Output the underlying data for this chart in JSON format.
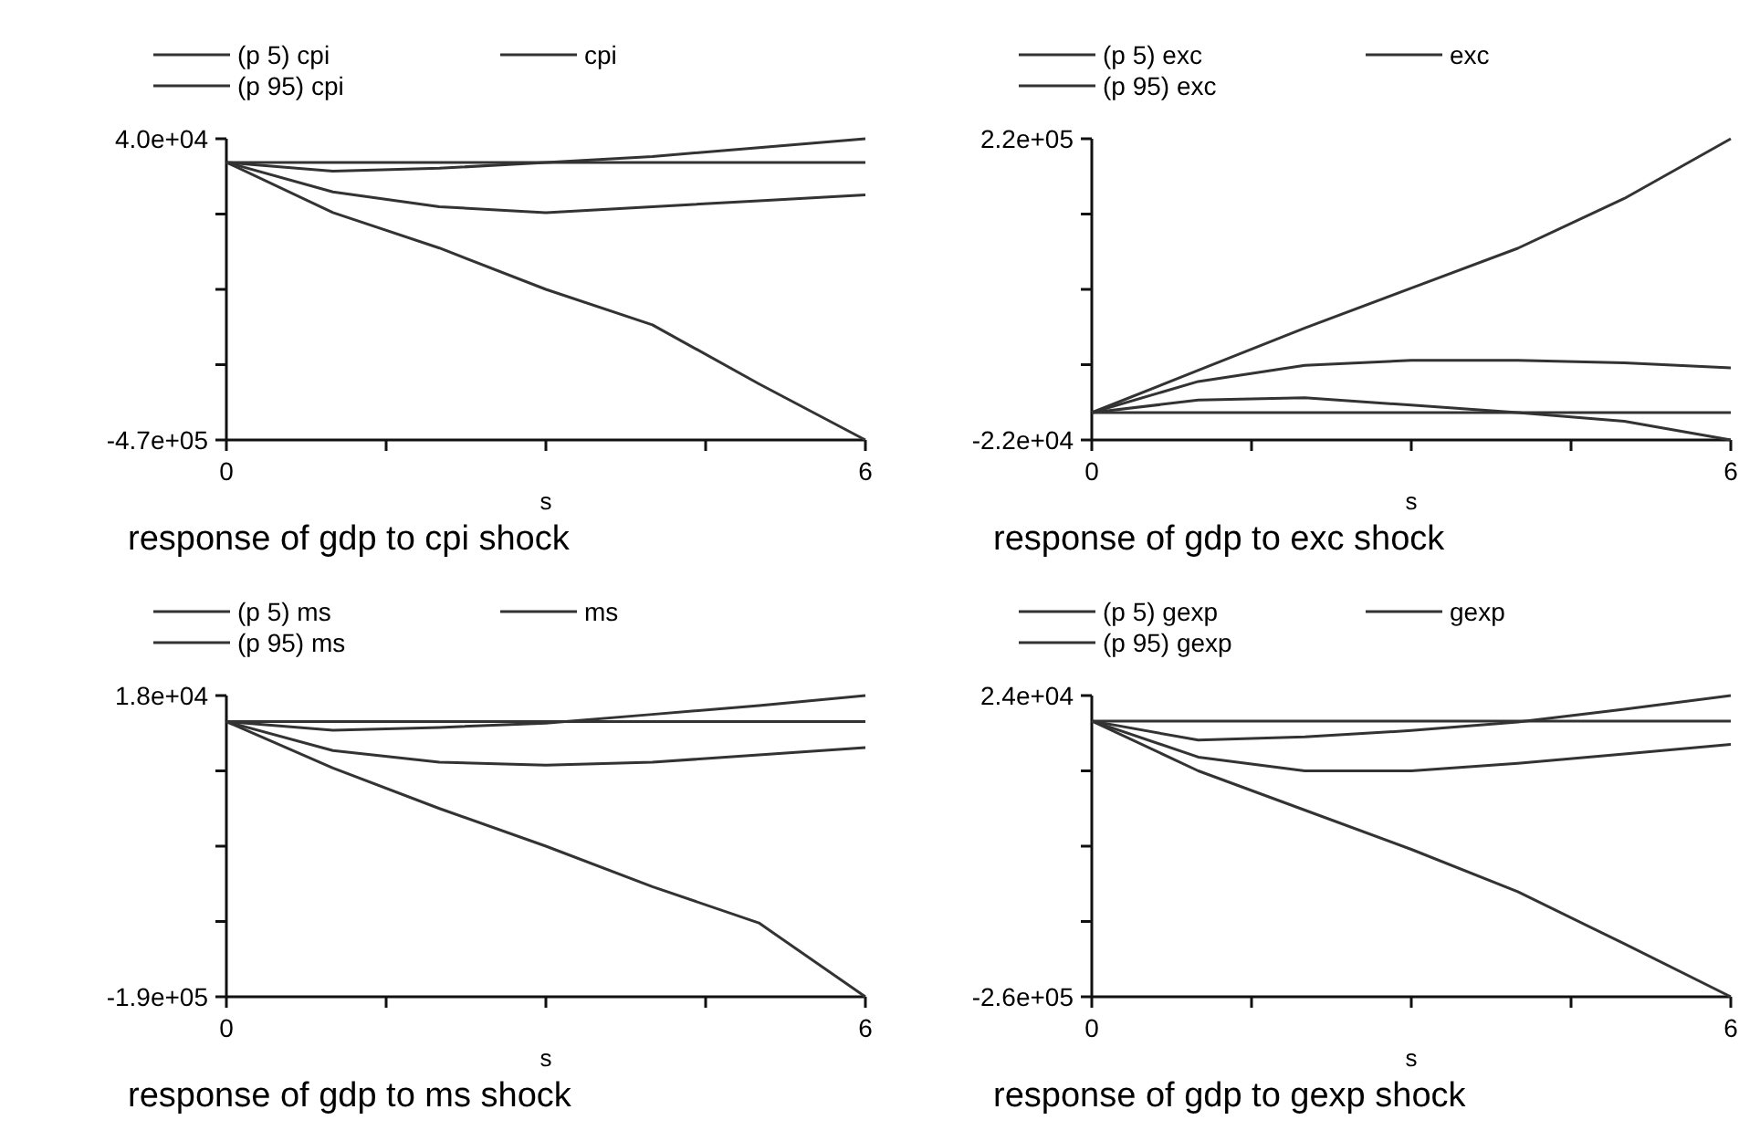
{
  "chart_data": [
    {
      "type": "line",
      "title": "response of gdp to cpi shock",
      "xlabel": "s",
      "x": [
        0,
        1,
        2,
        3,
        4,
        5,
        6
      ],
      "xlim": [
        0,
        6
      ],
      "xticks": [
        {
          "value": 0,
          "label": "0"
        },
        {
          "value": 1.5,
          "label": null
        },
        {
          "value": 3,
          "label": null
        },
        {
          "value": 4.5,
          "label": null
        },
        {
          "value": 6,
          "label": "6"
        }
      ],
      "ylim": [
        -470000,
        40000
      ],
      "yticks": [
        {
          "value": -470000,
          "label": "-4.7e+05"
        },
        {
          "value": -342500,
          "label": null
        },
        {
          "value": -215000,
          "label": null
        },
        {
          "value": -87500,
          "label": null
        },
        {
          "value": 40000,
          "label": "4.0e+04"
        }
      ],
      "legend": "top",
      "grid": false,
      "marker": "none",
      "line_style": "solid",
      "series": [
        {
          "name": "(p 5) cpi",
          "color": "#333333",
          "values": [
            0,
            -85000,
            -145000,
            -215000,
            -275000,
            -375000,
            -470000
          ]
        },
        {
          "name": "cpi",
          "color": "#333333",
          "values": [
            0,
            -50000,
            -75000,
            -85000,
            -75000,
            -65000,
            -55000
          ]
        },
        {
          "name": "(p 95) cpi",
          "color": "#333333",
          "values": [
            0,
            -15000,
            -10000,
            0,
            10000,
            25000,
            40000
          ]
        },
        {
          "color": "#333333",
          "values": [
            0,
            0,
            0,
            0,
            0,
            0,
            0
          ]
        }
      ]
    },
    {
      "type": "line",
      "title": "response of gdp to exc shock",
      "xlabel": "s",
      "x": [
        0,
        1,
        2,
        3,
        4,
        5,
        6
      ],
      "xlim": [
        0,
        6
      ],
      "xticks": [
        {
          "value": 0,
          "label": "0"
        },
        {
          "value": 1.5,
          "label": null
        },
        {
          "value": 3,
          "label": null
        },
        {
          "value": 4.5,
          "label": null
        },
        {
          "value": 6,
          "label": "6"
        }
      ],
      "ylim": [
        -22000,
        220000
      ],
      "yticks": [
        {
          "value": -22000,
          "label": "-2.2e+04"
        },
        {
          "value": 38500,
          "label": null
        },
        {
          "value": 99000,
          "label": null
        },
        {
          "value": 159500,
          "label": null
        },
        {
          "value": 220000,
          "label": "2.2e+05"
        }
      ],
      "legend": "top",
      "grid": false,
      "marker": "none",
      "line_style": "solid",
      "series": [
        {
          "name": "(p 5) exc",
          "color": "#333333",
          "values": [
            0,
            10000,
            12000,
            6000,
            0,
            -7000,
            -22000
          ]
        },
        {
          "name": "exc",
          "color": "#333333",
          "values": [
            0,
            25000,
            38000,
            42000,
            42000,
            40000,
            36000
          ]
        },
        {
          "name": "(p 95) exc",
          "color": "#333333",
          "values": [
            0,
            34000,
            68000,
            100000,
            132000,
            172000,
            220000
          ]
        },
        {
          "color": "#333333",
          "values": [
            0,
            0,
            0,
            0,
            0,
            0,
            0
          ]
        }
      ]
    },
    {
      "type": "line",
      "title": "response of gdp to ms shock",
      "xlabel": "s",
      "x": [
        0,
        1,
        2,
        3,
        4,
        5,
        6
      ],
      "xlim": [
        0,
        6
      ],
      "xticks": [
        {
          "value": 0,
          "label": "0"
        },
        {
          "value": 1.5,
          "label": null
        },
        {
          "value": 3,
          "label": null
        },
        {
          "value": 4.5,
          "label": null
        },
        {
          "value": 6,
          "label": "6"
        }
      ],
      "ylim": [
        -190000,
        18000
      ],
      "yticks": [
        {
          "value": -190000,
          "label": "-1.9e+05"
        },
        {
          "value": -138000,
          "label": null
        },
        {
          "value": -86000,
          "label": null
        },
        {
          "value": -34000,
          "label": null
        },
        {
          "value": 18000,
          "label": "1.8e+04"
        }
      ],
      "legend": "top",
      "grid": false,
      "marker": "none",
      "line_style": "solid",
      "series": [
        {
          "name": "(p 5) ms",
          "color": "#333333",
          "values": [
            0,
            -32000,
            -60000,
            -86000,
            -114000,
            -139000,
            -190000
          ]
        },
        {
          "name": "ms",
          "color": "#333333",
          "values": [
            0,
            -20000,
            -28000,
            -30000,
            -28000,
            -23000,
            -18000
          ]
        },
        {
          "name": "(p 95) ms",
          "color": "#333333",
          "values": [
            0,
            -6000,
            -4000,
            -1000,
            5000,
            11000,
            18000
          ]
        },
        {
          "color": "#333333",
          "values": [
            0,
            0,
            0,
            0,
            0,
            0,
            0
          ]
        }
      ]
    },
    {
      "type": "line",
      "title": "response of gdp to gexp shock",
      "xlabel": "s",
      "x": [
        0,
        1,
        2,
        3,
        4,
        5,
        6
      ],
      "xlim": [
        0,
        6
      ],
      "xticks": [
        {
          "value": 0,
          "label": "0"
        },
        {
          "value": 1.5,
          "label": null
        },
        {
          "value": 3,
          "label": null
        },
        {
          "value": 4.5,
          "label": null
        },
        {
          "value": 6,
          "label": "6"
        }
      ],
      "ylim": [
        -260000,
        24000
      ],
      "yticks": [
        {
          "value": -260000,
          "label": "-2.6e+05"
        },
        {
          "value": -189000,
          "label": null
        },
        {
          "value": -118000,
          "label": null
        },
        {
          "value": -47000,
          "label": null
        },
        {
          "value": 24000,
          "label": "2.4e+04"
        }
      ],
      "legend": "top",
      "grid": false,
      "marker": "none",
      "line_style": "solid",
      "series": [
        {
          "name": "(p 5) gexp",
          "color": "#333333",
          "values": [
            0,
            -47000,
            -84000,
            -121000,
            -161000,
            -210000,
            -260000
          ]
        },
        {
          "name": "gexp",
          "color": "#333333",
          "values": [
            0,
            -34000,
            -47000,
            -47000,
            -40000,
            -31000,
            -22000
          ]
        },
        {
          "name": "(p 95) gexp",
          "color": "#333333",
          "values": [
            0,
            -18000,
            -15000,
            -9000,
            -1000,
            11000,
            24000
          ]
        },
        {
          "color": "#333333",
          "values": [
            0,
            0,
            0,
            0,
            0,
            0,
            0
          ]
        }
      ]
    }
  ]
}
